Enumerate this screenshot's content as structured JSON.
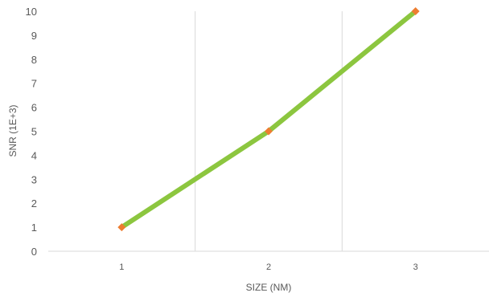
{
  "chart_data": {
    "type": "line",
    "title": "",
    "xlabel": "SIZE (NM)",
    "ylabel": "SNR (1E+3)",
    "categories": [
      "1",
      "2",
      "3"
    ],
    "series": [
      {
        "values": [
          1,
          5,
          10
        ]
      }
    ],
    "ylim": [
      0,
      10
    ],
    "yticks": [
      "0",
      "1",
      "2",
      "3",
      "4",
      "5",
      "6",
      "7",
      "8",
      "9",
      "10"
    ],
    "grid": "vertical gridlines between categories",
    "legend": "none",
    "colors": {
      "line": "#8cc63f",
      "marker": "#ed7d31",
      "grid": "#d9d9d9",
      "text": "#595959"
    }
  }
}
